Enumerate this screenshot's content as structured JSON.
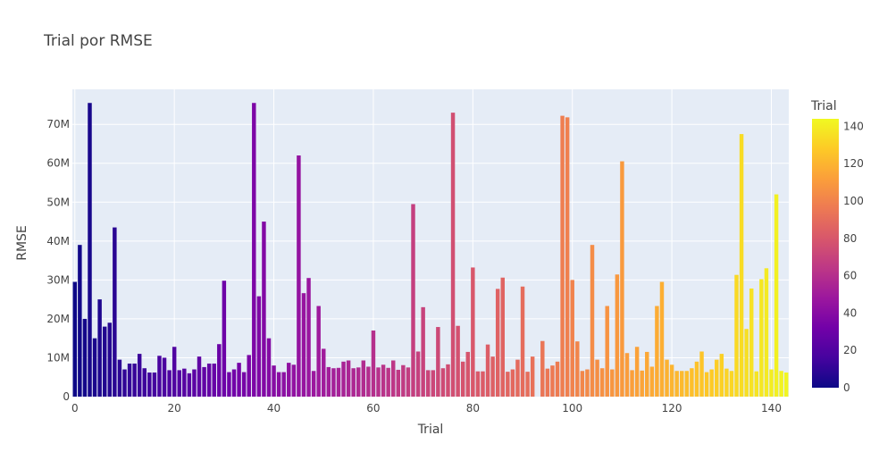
{
  "chart_data": {
    "type": "bar",
    "title": "Trial por RMSE",
    "xlabel": "Trial",
    "ylabel": "RMSE",
    "xlim": [
      -0.5,
      143.5
    ],
    "ylim": [
      0,
      79000000
    ],
    "x_ticks": [
      {
        "value": 0,
        "label": "0"
      },
      {
        "value": 20,
        "label": "20"
      },
      {
        "value": 40,
        "label": "40"
      },
      {
        "value": 60,
        "label": "60"
      },
      {
        "value": 80,
        "label": "80"
      },
      {
        "value": 100,
        "label": "100"
      },
      {
        "value": 120,
        "label": "120"
      },
      {
        "value": 140,
        "label": "140"
      }
    ],
    "y_ticks": [
      {
        "value": 0,
        "label": "0"
      },
      {
        "value": 10000000,
        "label": "10M"
      },
      {
        "value": 20000000,
        "label": "20M"
      },
      {
        "value": 30000000,
        "label": "30M"
      },
      {
        "value": 40000000,
        "label": "40M"
      },
      {
        "value": 50000000,
        "label": "50M"
      },
      {
        "value": 60000000,
        "label": "60M"
      },
      {
        "value": 70000000,
        "label": "70M"
      }
    ],
    "grid": true,
    "plot_background": "#E5ECF6",
    "colorbar": {
      "title": "Trial",
      "range": [
        0,
        144
      ],
      "ticks": [
        {
          "value": 0,
          "label": "0"
        },
        {
          "value": 20,
          "label": "20"
        },
        {
          "value": 40,
          "label": "40"
        },
        {
          "value": 60,
          "label": "60"
        },
        {
          "value": 80,
          "label": "80"
        },
        {
          "value": 100,
          "label": "100"
        },
        {
          "value": 120,
          "label": "120"
        },
        {
          "value": 140,
          "label": "140"
        }
      ],
      "colorscale": [
        "#0d0887",
        "#46039f",
        "#7201a8",
        "#9c179e",
        "#bd3786",
        "#d8576b",
        "#ed7953",
        "#fb9f3a",
        "#fdca26",
        "#f0f921"
      ]
    },
    "values": [
      29500000,
      39000000,
      20000000,
      75500000,
      15000000,
      25000000,
      18000000,
      19000000,
      43500000,
      9500000,
      7000000,
      8500000,
      8500000,
      11000000,
      7300000,
      6200000,
      6200000,
      10500000,
      10000000,
      6800000,
      12800000,
      6800000,
      7200000,
      6000000,
      7000000,
      10300000,
      7600000,
      8500000,
      8500000,
      13500000,
      29800000,
      6300000,
      7000000,
      8700000,
      6300000,
      10700000,
      75500000,
      25800000,
      45000000,
      15000000,
      8000000,
      6300000,
      6300000,
      8700000,
      8200000,
      62000000,
      26600000,
      30500000,
      6600000,
      23300000,
      12300000,
      7600000,
      7300000,
      7400000,
      9000000,
      9300000,
      7300000,
      7500000,
      9300000,
      7700000,
      17000000,
      7500000,
      8200000,
      7400000,
      9300000,
      6900000,
      8100000,
      7500000,
      49500000,
      11600000,
      23000000,
      6800000,
      6800000,
      17900000,
      7300000,
      8300000,
      73000000,
      18200000,
      9000000,
      11500000,
      33200000,
      6500000,
      6500000,
      13400000,
      10300000,
      27700000,
      30600000,
      6400000,
      7000000,
      9500000,
      28300000,
      6400000,
      10300000,
      0,
      14300000,
      7200000,
      8000000,
      9000000,
      72200000,
      71800000,
      30000000,
      14200000,
      6600000,
      7000000,
      39000000,
      9500000,
      7300000,
      23300000,
      7000000,
      31400000,
      60500000,
      11200000,
      6800000,
      12800000,
      6700000,
      11500000,
      7700000,
      23300000,
      29500000,
      9500000,
      8200000,
      6600000,
      6600000,
      6600000,
      7300000,
      9000000,
      11600000,
      6300000,
      7000000,
      9500000,
      11000000,
      7200000,
      6600000,
      31300000,
      67500000,
      17400000,
      27800000,
      6500000,
      30200000,
      33000000,
      7000000,
      52000000,
      6600000,
      6200000
    ]
  }
}
